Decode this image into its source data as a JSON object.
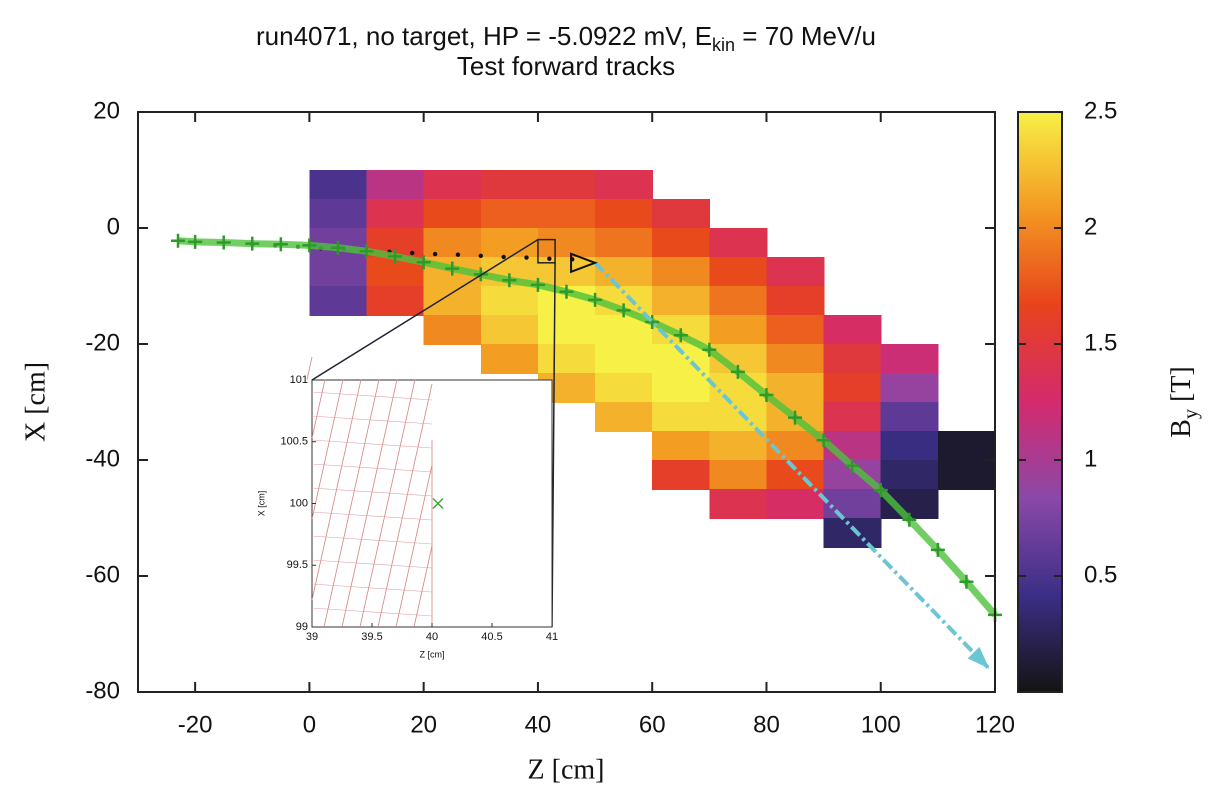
{
  "chart_data": {
    "type": "heatmap",
    "title": [
      "run4071, no target, HP = -5.0922 mV, E",
      "kin",
      " = 70 MeV/u"
    ],
    "subtitle": "Test forward tracks",
    "xlabel": "Z [cm]",
    "ylabel": "X [cm]",
    "xlim": [
      -30,
      120
    ],
    "ylim": [
      -80,
      20
    ],
    "xticks": [
      -20,
      0,
      20,
      40,
      60,
      80,
      100,
      120
    ],
    "yticks": [
      -80,
      -60,
      -40,
      -20,
      0,
      20
    ],
    "colorbar": {
      "label": [
        "B",
        "y",
        " [T]"
      ],
      "clim": [
        0,
        2.5
      ],
      "ticks": [
        0.5,
        1,
        1.5,
        2,
        2.5
      ],
      "colormap": [
        "#141414",
        "#3b2e86",
        "#8a48a8",
        "#d42a6e",
        "#e8431c",
        "#f39a22",
        "#f7f046"
      ]
    },
    "field": {
      "z": [
        0,
        10,
        20,
        30,
        40,
        50,
        60,
        70,
        80,
        90,
        100,
        110
      ],
      "x": [
        10,
        5,
        0,
        -5,
        -10,
        -15,
        -20,
        -25,
        -30,
        -35,
        -40,
        -45,
        -50
      ],
      "values": [
        [
          0.5,
          1.1,
          1.4,
          1.5,
          1.5,
          1.4,
          null,
          null,
          null,
          null,
          null,
          null
        ],
        [
          0.6,
          1.4,
          1.7,
          1.8,
          1.8,
          1.7,
          1.5,
          null,
          null,
          null,
          null,
          null
        ],
        [
          0.7,
          1.6,
          2.0,
          2.1,
          2.0,
          1.9,
          1.7,
          1.4,
          null,
          null,
          null,
          null
        ],
        [
          0.7,
          1.7,
          2.2,
          2.3,
          2.3,
          2.2,
          2.0,
          1.7,
          1.4,
          null,
          null,
          null
        ],
        [
          0.6,
          1.6,
          2.2,
          2.4,
          2.5,
          2.4,
          2.2,
          1.9,
          1.6,
          null,
          null,
          null
        ],
        [
          null,
          null,
          2.0,
          2.3,
          2.5,
          2.5,
          2.4,
          2.1,
          1.8,
          1.3,
          null,
          null
        ],
        [
          null,
          null,
          null,
          2.1,
          2.4,
          2.5,
          2.5,
          2.3,
          2.0,
          1.5,
          1.2,
          null
        ],
        [
          null,
          null,
          null,
          null,
          2.2,
          2.4,
          2.5,
          2.4,
          2.2,
          1.6,
          0.9,
          null
        ],
        [
          null,
          null,
          null,
          null,
          null,
          2.2,
          2.4,
          2.4,
          2.2,
          1.4,
          0.6,
          null
        ],
        [
          null,
          null,
          null,
          null,
          null,
          null,
          2.1,
          2.2,
          2.0,
          1.1,
          0.4,
          0.1
        ],
        [
          null,
          null,
          null,
          null,
          null,
          null,
          1.6,
          2.0,
          1.7,
          0.9,
          0.3,
          0.1
        ],
        [
          null,
          null,
          null,
          null,
          null,
          null,
          null,
          1.4,
          1.3,
          0.7,
          0.2,
          null
        ],
        [
          null,
          null,
          null,
          null,
          null,
          null,
          null,
          null,
          null,
          0.3,
          null,
          null
        ]
      ]
    },
    "track": {
      "color": "#4cc23c",
      "z": [
        -23,
        -20,
        -15,
        -10,
        -5,
        0,
        5,
        10,
        15,
        20,
        25,
        30,
        35,
        40,
        45,
        50,
        55,
        60,
        65,
        70,
        75,
        80,
        85,
        90,
        95,
        100,
        105,
        110,
        115,
        120
      ],
      "x": [
        -2.2,
        -2.4,
        -2.5,
        -2.7,
        -2.8,
        -3,
        -3.4,
        -4,
        -4.9,
        -5.9,
        -7,
        -8,
        -9,
        -9.8,
        -11,
        -12.4,
        -14.2,
        -16.2,
        -18.5,
        -21,
        -24.8,
        -28.8,
        -32.7,
        -36.6,
        -41,
        -45.2,
        -50.3,
        -55.5,
        -61,
        -66.7
      ]
    },
    "hits": {
      "color": "#111111",
      "z": [
        -10,
        -6,
        -2,
        2,
        6,
        10,
        14,
        18,
        22,
        26,
        30,
        34,
        38,
        42,
        46
      ],
      "x": [
        -2.8,
        -3,
        -3.2,
        -3.5,
        -3.7,
        -3.9,
        -4.1,
        -4.3,
        -4.5,
        -4.6,
        -4.8,
        -5,
        -5.1,
        -5.3,
        -5.4
      ]
    },
    "arrow": {
      "color": "#6cc6d2",
      "z": [
        50,
        119
      ],
      "x": [
        -6,
        -76
      ]
    },
    "inset": {
      "xlabel": "Z [cm]",
      "ylabel": "X [cm]",
      "xlim": [
        39,
        41
      ],
      "ylim": [
        99,
        101
      ],
      "xticks": [
        39,
        39.5,
        40,
        40.5,
        41
      ],
      "yticks": [
        99,
        99.5,
        100,
        100.5,
        101
      ],
      "zoom": {
        "z": [
          40,
          43
        ],
        "x": [
          -6,
          -2
        ]
      },
      "point": {
        "z": 40.05,
        "x": 100
      }
    }
  }
}
